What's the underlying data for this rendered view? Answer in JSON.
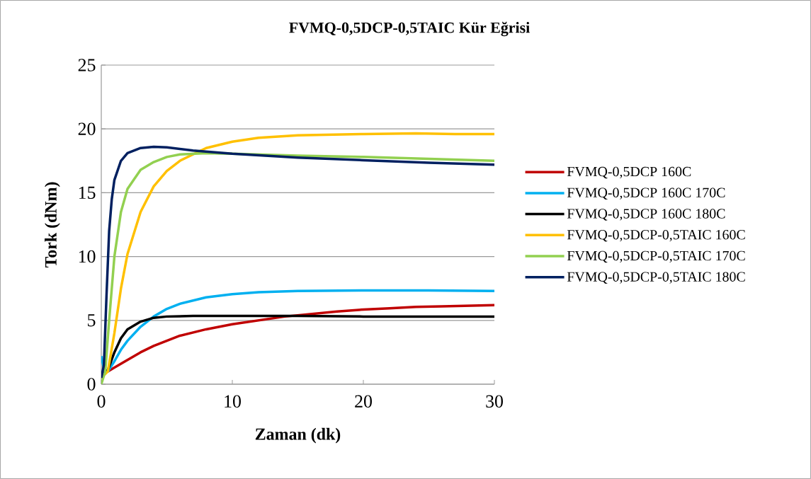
{
  "chart_data": {
    "type": "line",
    "title": "FVMQ-0,5DCP-0,5TAIC Kür Eğrisi",
    "xlabel": "Zaman (dk)",
    "ylabel": "Tork (dNm)",
    "xlim": [
      0,
      30
    ],
    "ylim": [
      0,
      25
    ],
    "xticks": [
      0,
      10,
      20,
      30
    ],
    "yticks": [
      0,
      5,
      10,
      15,
      20,
      25
    ],
    "grid": "y",
    "legend": "right",
    "marker": "none",
    "line_style": "solid",
    "series": [
      {
        "name": "FVMQ-0,5DCP 160C",
        "color": "#c00000",
        "x": [
          0,
          0.3,
          0.5,
          1,
          2,
          3,
          4,
          5,
          6,
          8,
          10,
          12,
          14,
          16,
          18,
          20,
          22,
          24,
          26,
          28,
          30
        ],
        "values": [
          0.5,
          0.9,
          1.0,
          1.3,
          1.9,
          2.5,
          3.0,
          3.4,
          3.8,
          4.3,
          4.7,
          5.0,
          5.3,
          5.5,
          5.7,
          5.85,
          5.95,
          6.05,
          6.1,
          6.15,
          6.2
        ]
      },
      {
        "name": "FVMQ-0,5DCP 160C 170C",
        "color": "#00b0f0",
        "x": [
          0,
          0.2,
          0.5,
          1,
          1.5,
          2,
          3,
          4,
          5,
          6,
          8,
          10,
          12,
          15,
          20,
          25,
          30
        ],
        "values": [
          2.2,
          1.2,
          1.0,
          1.8,
          2.7,
          3.4,
          4.5,
          5.3,
          5.9,
          6.3,
          6.8,
          7.05,
          7.2,
          7.3,
          7.35,
          7.35,
          7.3
        ]
      },
      {
        "name": "FVMQ-0,5DCP 160C 180C",
        "color": "#000000",
        "x": [
          0,
          0.3,
          0.5,
          1,
          1.5,
          2,
          3,
          4,
          5,
          7,
          10,
          15,
          20,
          30
        ],
        "values": [
          0.5,
          1.0,
          1.1,
          2.5,
          3.6,
          4.3,
          4.9,
          5.2,
          5.3,
          5.35,
          5.35,
          5.35,
          5.3,
          5.3
        ]
      },
      {
        "name": "FVMQ-0,5DCP-0,5TAIC 160C",
        "color": "#ffc000",
        "x": [
          0,
          0.5,
          1,
          1.5,
          2,
          3,
          4,
          5,
          6,
          7,
          8,
          10,
          12,
          15,
          20,
          24,
          27,
          30
        ],
        "values": [
          0.5,
          1.0,
          4,
          7.5,
          10.2,
          13.5,
          15.5,
          16.7,
          17.5,
          18.0,
          18.5,
          19.0,
          19.3,
          19.5,
          19.6,
          19.65,
          19.6,
          19.6
        ]
      },
      {
        "name": "FVMQ-0,5DCP-0,5TAIC 170C",
        "color": "#92d050",
        "x": [
          0,
          0.3,
          0.6,
          1,
          1.5,
          2,
          3,
          4,
          5,
          6,
          8,
          10,
          15,
          20,
          25,
          30
        ],
        "values": [
          0,
          1,
          5,
          10,
          13.5,
          15.3,
          16.8,
          17.4,
          17.8,
          18.0,
          18.1,
          18.05,
          17.9,
          17.8,
          17.65,
          17.5
        ]
      },
      {
        "name": "FVMQ-0,5DCP-0,5TAIC 180C",
        "color": "#002060",
        "x": [
          0,
          0.2,
          0.4,
          0.6,
          0.8,
          1,
          1.5,
          2,
          3,
          4,
          5,
          7,
          10,
          15,
          20,
          25,
          30
        ],
        "values": [
          0.5,
          1.5,
          7,
          12,
          14.5,
          16,
          17.5,
          18.1,
          18.5,
          18.6,
          18.55,
          18.3,
          18.05,
          17.75,
          17.55,
          17.35,
          17.2
        ]
      }
    ]
  }
}
